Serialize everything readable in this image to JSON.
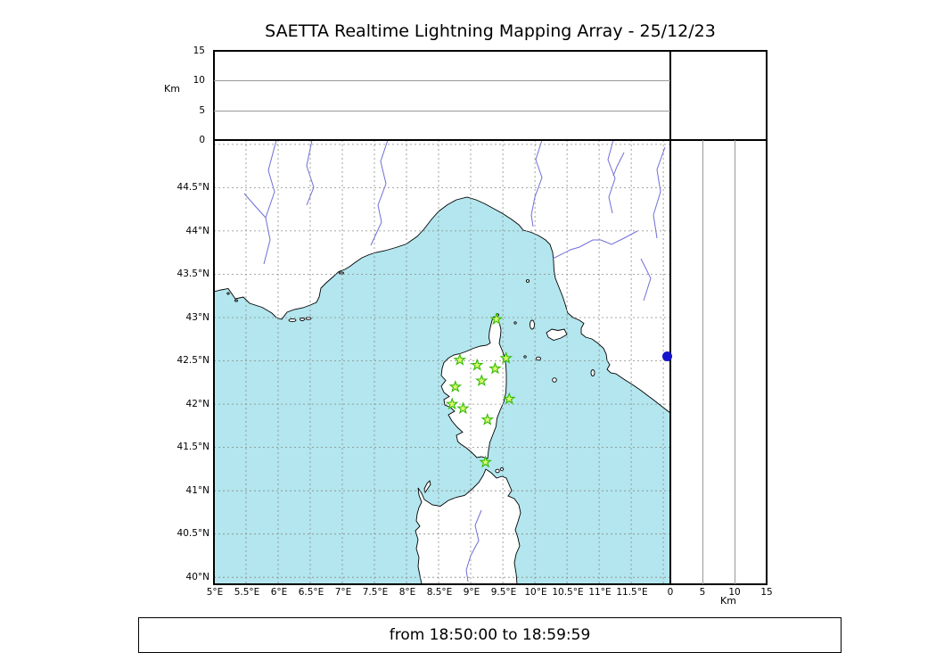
{
  "title": "SAETTA Realtime Lightning Mapping Array - 25/12/23",
  "footer": {
    "text": "from 18:50:00 to 18:59:59"
  },
  "axes": {
    "alt_left": {
      "label": "Km",
      "ticks": [
        "0",
        "5",
        "10",
        "15"
      ]
    },
    "alt_bottom": {
      "label": "Km",
      "ticks": [
        "0",
        "5",
        "10",
        "15"
      ]
    },
    "lat_ticks": [
      "44.5°N",
      "44°N",
      "43.5°N",
      "43°N",
      "42.5°N",
      "42°N",
      "41.5°N",
      "41°N",
      "40.5°N",
      "40°N"
    ],
    "lon_ticks": [
      "5°E",
      "5.5°E",
      "6°E",
      "6.5°E",
      "7°E",
      "7.5°E",
      "8°E",
      "8.5°E",
      "9°E",
      "9.5°E",
      "10°E",
      "10.5°E",
      "11°E",
      "11.5°E"
    ]
  },
  "colors": {
    "sea": "#b3e6ee",
    "land": "#ffffff",
    "coast": "#000000",
    "grid": "#8a8a8a",
    "river": "#6f6fd8",
    "station_fill": "#d9f970",
    "station_stroke": "#33bb00",
    "source_dot": "#1515cd",
    "frame": "#000000"
  },
  "chart_data": {
    "type": "scatter",
    "title": "SAETTA Realtime Lightning Mapping Array - 25/12/23",
    "map_extent": {
      "lon": [
        5.0,
        12.11
      ],
      "lat": [
        39.92,
        45.05
      ]
    },
    "alt_range_km": [
      0,
      15
    ],
    "alt_gridlines_km": [
      5,
      10
    ],
    "grid": {
      "lon_step": 0.5,
      "lat_step": 0.5
    },
    "stations": [
      [
        9.4,
        42.98
      ],
      [
        8.83,
        42.51
      ],
      [
        9.1,
        42.45
      ],
      [
        9.38,
        42.41
      ],
      [
        9.55,
        42.53
      ],
      [
        9.17,
        42.27
      ],
      [
        8.76,
        42.2
      ],
      [
        9.6,
        42.06
      ],
      [
        8.71,
        42.0
      ],
      [
        8.88,
        41.95
      ],
      [
        9.26,
        41.82
      ],
      [
        9.23,
        41.33
      ]
    ],
    "sources": [
      {
        "lat": 42.55,
        "alt_km": 0
      }
    ],
    "time_window": {
      "from": "18:50:00",
      "to": "18:59:59"
    }
  }
}
